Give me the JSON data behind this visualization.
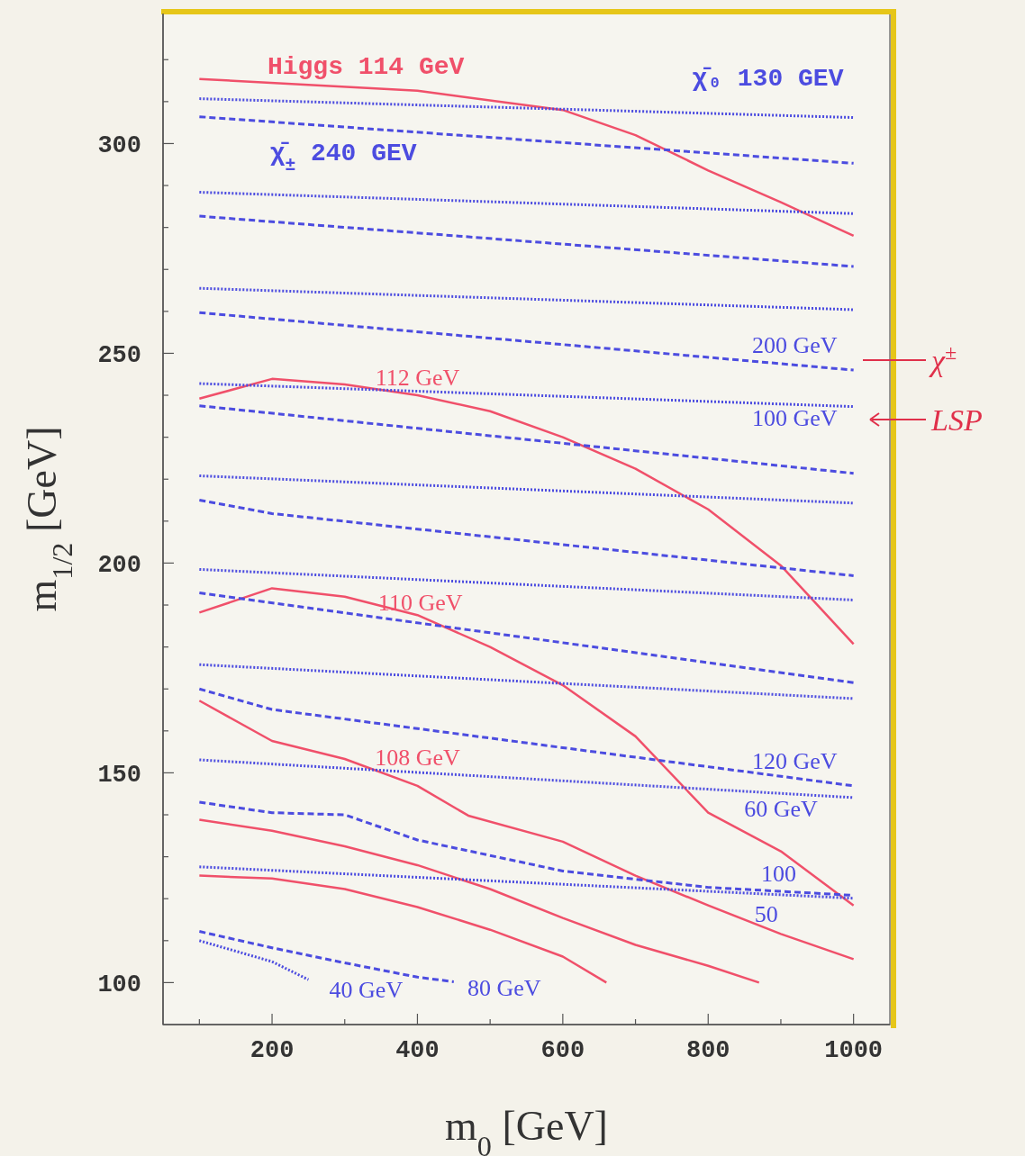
{
  "chart_data": {
    "type": "line",
    "xlabel": "m$_{0}$ [GeV]",
    "ylabel": "m$_{1/2}$ [GeV]",
    "xlim": [
      50,
      1050
    ],
    "ylim": [
      90,
      331
    ],
    "xticks": [
      {
        "value": 100,
        "label": null
      },
      200,
      {
        "value": 300,
        "label": null
      },
      400,
      {
        "value": 500,
        "label": null
      },
      600,
      {
        "value": 700,
        "label": null
      },
      800,
      {
        "value": 900,
        "label": null
      },
      1000
    ],
    "yticks": [
      100,
      {
        "value": 110,
        "label": null
      },
      {
        "value": 120,
        "label": null
      },
      {
        "value": 130,
        "label": null
      },
      {
        "value": 140,
        "label": null
      },
      150,
      {
        "value": 160,
        "label": null
      },
      {
        "value": 170,
        "label": null
      },
      {
        "value": 180,
        "label": null
      },
      {
        "value": 190,
        "label": null
      },
      200,
      {
        "value": 210,
        "label": null
      },
      {
        "value": 220,
        "label": null
      },
      {
        "value": 230,
        "label": null
      },
      {
        "value": 240,
        "label": null
      },
      250,
      {
        "value": 260,
        "label": null
      },
      {
        "value": 270,
        "label": null
      },
      {
        "value": 280,
        "label": null
      },
      {
        "value": 290,
        "label": null
      },
      300,
      {
        "value": 310,
        "label": null
      },
      {
        "value": 320,
        "label": null
      }
    ],
    "grid": false,
    "legend": false,
    "marker": "none",
    "series": [
      {
        "name": "Higgs 114 GeV",
        "color": "#f0506a",
        "line_style": "solid",
        "x": [
          100,
          400,
          600,
          700,
          800,
          900,
          1000
        ],
        "values": [
          315.4,
          312.6,
          308,
          302,
          293.6,
          286,
          278
        ]
      },
      {
        "name": "112 GeV",
        "color": "#f0506a",
        "line_style": "solid",
        "x": [
          100,
          200,
          300,
          400,
          500,
          600,
          700,
          800,
          900,
          1000
        ],
        "values": [
          239.2,
          243.9,
          242.6,
          240,
          236.2,
          230,
          222.5,
          212.8,
          199.4,
          180.7
        ]
      },
      {
        "name": "110 GeV",
        "color": "#f0506a",
        "line_style": "solid",
        "x": [
          100,
          200,
          300,
          400,
          500,
          600,
          700,
          800,
          900,
          1000
        ],
        "values": [
          188.2,
          194,
          192,
          187.6,
          180,
          170.9,
          158.7,
          140.5,
          131.3,
          118.4
        ]
      },
      {
        "name": "108 GeV",
        "color": "#f0506a",
        "line_style": "solid",
        "x": [
          100,
          200,
          300,
          400,
          470,
          600,
          700,
          800,
          900,
          1000
        ],
        "values": [
          167.2,
          157.6,
          153.3,
          146.9,
          139.8,
          133.6,
          125.5,
          118.4,
          111.6,
          105.6
        ]
      },
      {
        "color": "#f0506a",
        "line_style": "solid",
        "x": [
          100,
          200,
          300,
          400,
          500,
          600,
          700,
          800,
          870
        ],
        "values": [
          138.8,
          136.2,
          132.5,
          128,
          122.3,
          115.4,
          109,
          104,
          100
        ]
      },
      {
        "color": "#f0506a",
        "line_style": "solid",
        "x": [
          100,
          200,
          300,
          400,
          500,
          600,
          660
        ],
        "values": [
          125.5,
          124.8,
          122.3,
          118,
          112.6,
          106.2,
          100
        ]
      },
      {
        "name": "χ̄₀ 130 GEV",
        "color": "#4c4ce0",
        "line_style": "dotted",
        "x": [
          100,
          1000
        ],
        "values": [
          310.7,
          306.2
        ]
      },
      {
        "color": "#4c4ce0",
        "line_style": "dotted",
        "x": [
          100,
          1000
        ],
        "values": [
          288.4,
          283.3
        ]
      },
      {
        "color": "#4c4ce0",
        "line_style": "dotted",
        "x": [
          100,
          1000
        ],
        "values": [
          265.5,
          260.4
        ]
      },
      {
        "name": "100 GeV",
        "color": "#4c4ce0",
        "line_style": "dotted",
        "x": [
          100,
          1000
        ],
        "values": [
          242.8,
          237.3
        ]
      },
      {
        "color": "#4c4ce0",
        "line_style": "dotted",
        "x": [
          100,
          1000
        ],
        "values": [
          220.8,
          214.3
        ]
      },
      {
        "color": "#4c4ce0",
        "line_style": "dotted",
        "x": [
          100,
          1000
        ],
        "values": [
          198.5,
          191.2
        ]
      },
      {
        "color": "#4c4ce0",
        "line_style": "dotted",
        "x": [
          100,
          1000
        ],
        "values": [
          175.8,
          167.7
        ]
      },
      {
        "name": "60 GeV",
        "color": "#4c4ce0",
        "line_style": "dotted",
        "x": [
          100,
          1000
        ],
        "values": [
          153.1,
          144.1
        ]
      },
      {
        "name": "50",
        "color": "#4c4ce0",
        "line_style": "dotted",
        "x": [
          100,
          1000
        ],
        "values": [
          127.6,
          120.1
        ]
      },
      {
        "name": "40 GeV",
        "color": "#4c4ce0",
        "line_style": "dotted",
        "x": [
          100,
          200,
          250
        ],
        "values": [
          110,
          105,
          100.7
        ]
      },
      {
        "name": "χ̄$_{±}$ 240 GEV",
        "color": "#4c4ce0",
        "line_style": "dashed",
        "x": [
          100,
          1000
        ],
        "values": [
          306.4,
          295.3
        ]
      },
      {
        "color": "#4c4ce0",
        "line_style": "dashed",
        "x": [
          100,
          1000
        ],
        "values": [
          282.7,
          270.7
        ]
      },
      {
        "name": "200 GeV",
        "color": "#4c4ce0",
        "line_style": "dashed",
        "x": [
          100,
          1000
        ],
        "values": [
          259.7,
          246
        ]
      },
      {
        "color": "#4c4ce0",
        "line_style": "dashed",
        "x": [
          100,
          1000
        ],
        "values": [
          237.5,
          221.4
        ]
      },
      {
        "color": "#4c4ce0",
        "line_style": "dashed",
        "x": [
          100,
          200,
          1000
        ],
        "values": [
          215,
          211.8,
          197
        ]
      },
      {
        "color": "#4c4ce0",
        "line_style": "dashed",
        "x": [
          100,
          1000
        ],
        "values": [
          192.9,
          171.5
        ]
      },
      {
        "name": "120 GeV",
        "color": "#4c4ce0",
        "line_style": "dashed",
        "x": [
          100,
          200,
          1000
        ],
        "values": [
          170,
          165.1,
          146.9
        ]
      },
      {
        "name": "100",
        "color": "#4c4ce0",
        "line_style": "dashed",
        "x": [
          100,
          200,
          300,
          400,
          600,
          800,
          1000
        ],
        "values": [
          143,
          140.5,
          140,
          134,
          126.6,
          122.7,
          120.8
        ]
      },
      {
        "name": "80 GeV",
        "color": "#4c4ce0",
        "line_style": "dashed",
        "x": [
          100,
          200,
          300,
          400,
          450
        ],
        "values": [
          112.2,
          108.3,
          104.7,
          101.3,
          100.2
        ]
      }
    ],
    "annotations": [
      "χ$^{±}$",
      "LSP"
    ]
  }
}
